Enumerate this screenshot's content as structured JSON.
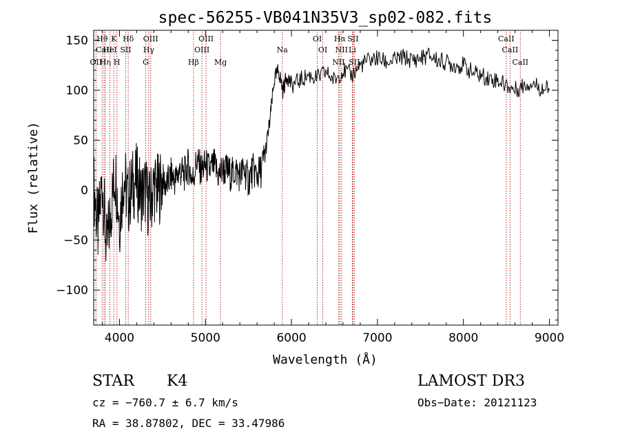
{
  "chart_data": {
    "type": "line",
    "title": "spec-56255-VB041N35V3_sp02-082.fits",
    "xlabel": "Wavelength (Å)",
    "ylabel": "Flux (relative)",
    "xlim": [
      3700,
      9100
    ],
    "ylim": [
      -135,
      160
    ],
    "xticks": [
      4000,
      5000,
      6000,
      7000,
      8000,
      9000
    ],
    "xtick_labels": [
      "4000",
      "5000",
      "6000",
      "7000",
      "8000",
      "9000"
    ],
    "yticks": [
      -100,
      -50,
      0,
      50,
      100,
      150
    ],
    "ytick_labels": [
      "−100",
      "−50",
      "0",
      "50",
      "100",
      "150"
    ],
    "series": [
      {
        "name": "flux",
        "x": [
          3700,
          3750,
          3800,
          3850,
          3900,
          3950,
          4000,
          4050,
          4100,
          4150,
          4200,
          4250,
          4300,
          4350,
          4400,
          4450,
          4500,
          4550,
          4600,
          4650,
          4700,
          4750,
          4800,
          4850,
          4900,
          4950,
          5000,
          5050,
          5100,
          5150,
          5200,
          5250,
          5300,
          5350,
          5400,
          5450,
          5500,
          5550,
          5600,
          5650,
          5700,
          5750,
          5800,
          5850,
          5900,
          5950,
          6000,
          6100,
          6200,
          6300,
          6400,
          6500,
          6600,
          6700,
          6800,
          6900,
          7000,
          7100,
          7200,
          7300,
          7400,
          7500,
          7600,
          7700,
          7800,
          7900,
          8000,
          8100,
          8200,
          8300,
          8400,
          8500,
          8600,
          8700,
          8800,
          8900,
          9000
        ],
        "values": [
          5,
          -40,
          10,
          -60,
          -20,
          20,
          -30,
          15,
          -10,
          5,
          10,
          -5,
          0,
          -15,
          5,
          0,
          10,
          5,
          15,
          10,
          20,
          15,
          25,
          10,
          30,
          20,
          25,
          20,
          25,
          15,
          20,
          20,
          15,
          20,
          15,
          20,
          10,
          20,
          15,
          20,
          40,
          70,
          110,
          120,
          100,
          115,
          105,
          110,
          115,
          112,
          118,
          110,
          120,
          115,
          125,
          130,
          132,
          128,
          130,
          133,
          130,
          132,
          135,
          130,
          128,
          125,
          125,
          118,
          115,
          112,
          110,
          105,
          100,
          105,
          108,
          102,
          100
        ]
      }
    ],
    "line_markers": [
      {
        "label": "Hθ",
        "x": 3798,
        "row": 0
      },
      {
        "label": "CaII",
        "x": 3820,
        "row": 1
      },
      {
        "label": "OII",
        "x": 3727,
        "row": 2
      },
      {
        "label": "Hη",
        "x": 3835,
        "row": 2
      },
      {
        "label": "K",
        "x": 3934,
        "row": 0
      },
      {
        "label": "HeI",
        "x": 3889,
        "row": 1
      },
      {
        "label": "SII",
        "x": 4072,
        "row": 1
      },
      {
        "label": "H",
        "x": 3970,
        "row": 2
      },
      {
        "label": "Hδ",
        "x": 4102,
        "row": 0
      },
      {
        "label": "OIII",
        "x": 4363,
        "row": 0
      },
      {
        "label": "Hγ",
        "x": 4340,
        "row": 1
      },
      {
        "label": "G",
        "x": 4305,
        "row": 2
      },
      {
        "label": "OIII",
        "x": 5007,
        "row": 0
      },
      {
        "label": "OIII",
        "x": 4959,
        "row": 1
      },
      {
        "label": "Hβ",
        "x": 4861,
        "row": 2
      },
      {
        "label": "Mg",
        "x": 5175,
        "row": 2
      },
      {
        "label": "Na",
        "x": 5893,
        "row": 1
      },
      {
        "label": "OI",
        "x": 6300,
        "row": 0
      },
      {
        "label": "OI",
        "x": 6364,
        "row": 1
      },
      {
        "label": "Hα",
        "x": 6563,
        "row": 0
      },
      {
        "label": "SII",
        "x": 6716,
        "row": 0
      },
      {
        "label": "NII",
        "x": 6583,
        "row": 1
      },
      {
        "label": "Li",
        "x": 6708,
        "row": 1
      },
      {
        "label": "NII",
        "x": 6548,
        "row": 2
      },
      {
        "label": "SII",
        "x": 6731,
        "row": 2
      },
      {
        "label": "CaII",
        "x": 8498,
        "row": 0
      },
      {
        "label": "CaII",
        "x": 8542,
        "row": 1
      },
      {
        "label": "CaII",
        "x": 8662,
        "row": 2
      }
    ]
  },
  "info": {
    "class_label": "STAR",
    "subclass": "K4",
    "survey": "LAMOST DR3",
    "cz": "cz = −760.7 ± 6.7 km/s",
    "obs_date": "Obs−Date: 20121123",
    "coords": "RA =  38.87802, DEC =  33.47986"
  },
  "colors": {
    "marker": "#b22222",
    "trace": "#000000",
    "frame": "#000000"
  }
}
